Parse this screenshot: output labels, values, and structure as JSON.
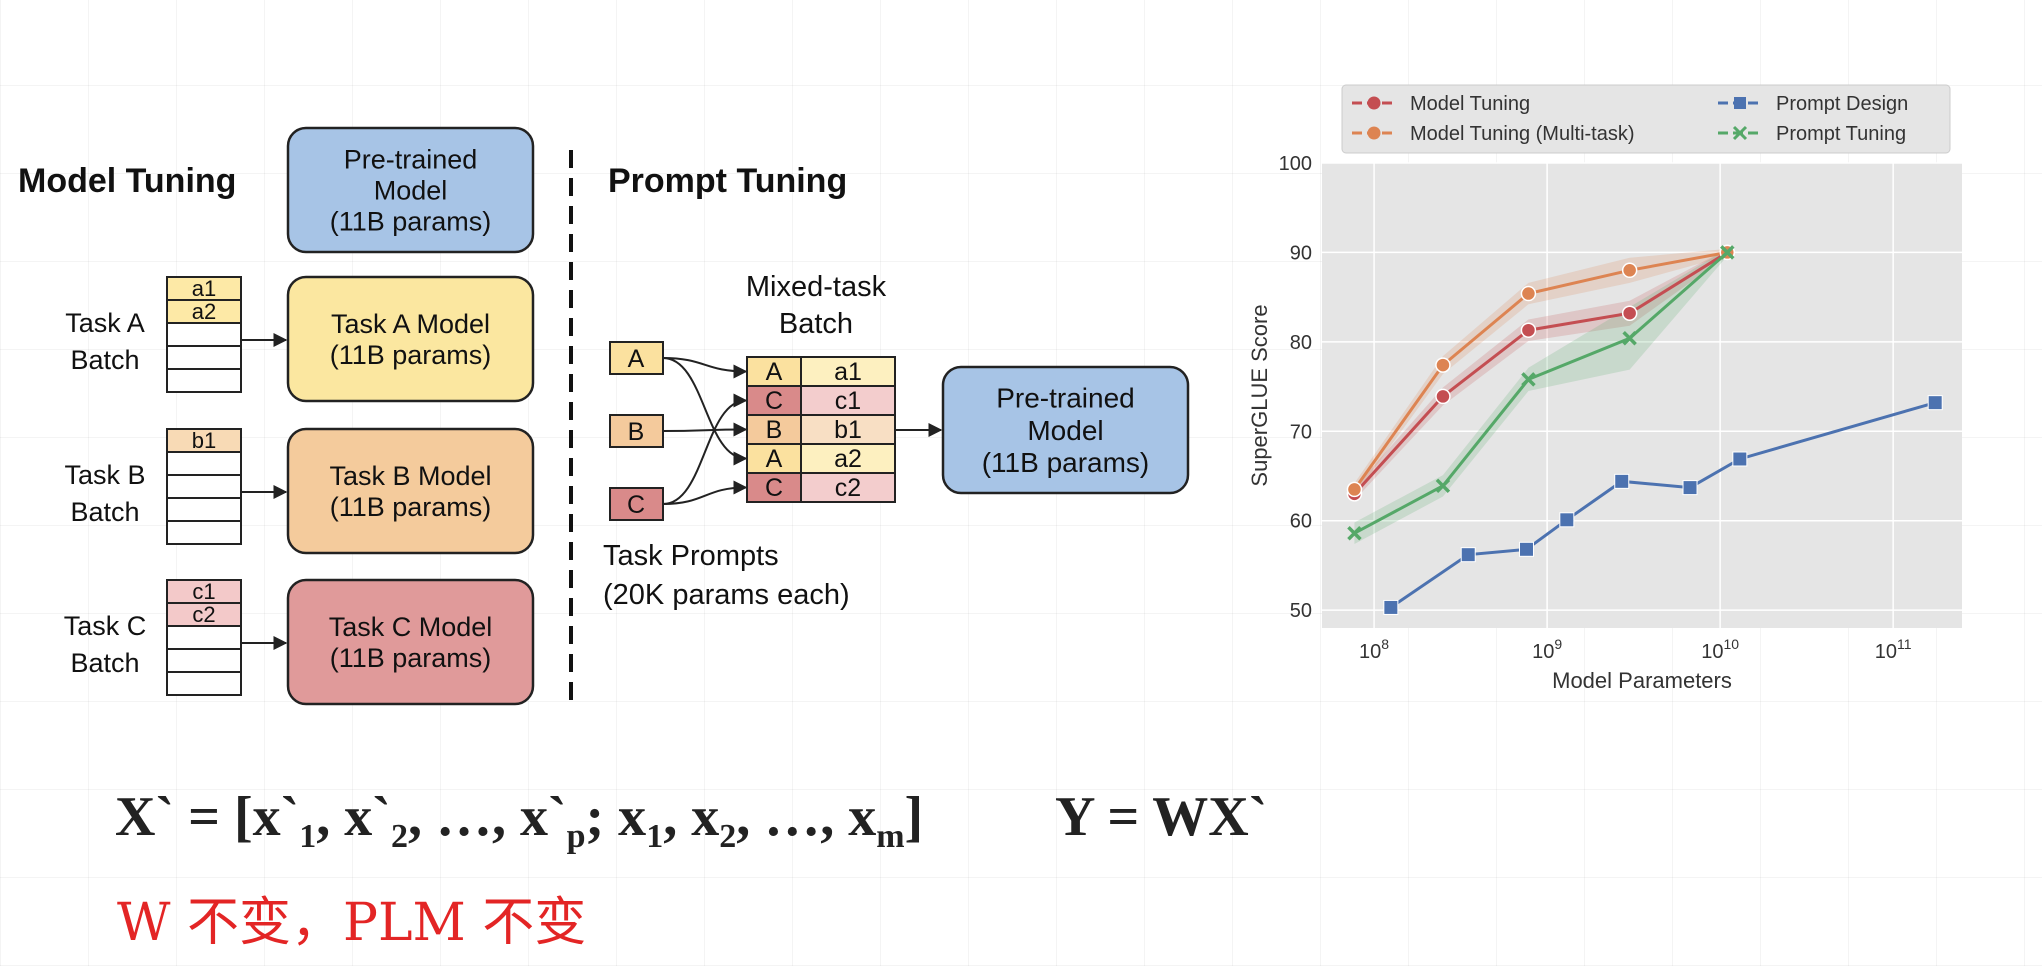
{
  "diagram": {
    "model_tuning": {
      "title": "Model Tuning",
      "pretrained": [
        "Pre-trained",
        "Model",
        "(11B params)"
      ],
      "tasks": [
        {
          "label": [
            "Task A",
            "Batch"
          ],
          "rows": [
            "a1",
            "a2",
            "",
            "",
            ""
          ],
          "model": [
            "Task A Model",
            "(11B params)"
          ],
          "fill": "#fde9a6",
          "model_fill": "#fbe7a0"
        },
        {
          "label": [
            "Task B",
            "Batch"
          ],
          "rows": [
            "b1",
            "",
            "",
            "",
            ""
          ],
          "model": [
            "Task B Model",
            "(11B params)"
          ],
          "fill": "#f8dab5",
          "model_fill": "#f4cb9c"
        },
        {
          "label": [
            "Task C",
            "Batch"
          ],
          "rows": [
            "c1",
            "c2",
            "",
            "",
            ""
          ],
          "model": [
            "Task C Model",
            "(11B params)"
          ],
          "fill": "#f3c9c9",
          "model_fill": "#e09a9a"
        }
      ]
    },
    "prompt_tuning": {
      "title": "Prompt Tuning",
      "mixed_title": [
        "Mixed-task",
        "Batch"
      ],
      "prompts": [
        "A",
        "B",
        "C"
      ],
      "prompt_fills": [
        "#fbe19f",
        "#f4ca9c",
        "#d98a8a"
      ],
      "batch": [
        {
          "prompt": "A",
          "data": "a1"
        },
        {
          "prompt": "C",
          "data": "c1"
        },
        {
          "prompt": "B",
          "data": "b1"
        },
        {
          "prompt": "A",
          "data": "a2"
        },
        {
          "prompt": "C",
          "data": "c2"
        }
      ],
      "task_prompts": [
        "Task Prompts",
        "(20K params each)"
      ],
      "pretrained": [
        "Pre-trained",
        "Model",
        "(11B params)"
      ]
    },
    "colors": {
      "blue_model": "#a7c4e6",
      "stroke": "#222222"
    }
  },
  "chart_data": {
    "type": "line",
    "xlabel": "Model Parameters",
    "ylabel": "SuperGLUE Score",
    "xscale": "log",
    "xlim": [
      50000000,
      250000000000
    ],
    "ylim": [
      48,
      100
    ],
    "xticks": [
      {
        "base": "10",
        "exp": "8",
        "value": 100000000
      },
      {
        "base": "10",
        "exp": "9",
        "value": 1000000000
      },
      {
        "base": "10",
        "exp": "10",
        "value": 10000000000
      },
      {
        "base": "10",
        "exp": "11",
        "value": 100000000000
      }
    ],
    "yticks": [
      50,
      60,
      70,
      80,
      90,
      100
    ],
    "grid": true,
    "legend_position": "top",
    "series": [
      {
        "name": "Model Tuning",
        "color": "#c44e52",
        "marker": "circle",
        "x": [
          77000000,
          250000000,
          780000000,
          3000000000,
          11000000000
        ],
        "y": [
          63.0,
          73.9,
          81.3,
          83.2,
          90.0
        ]
      },
      {
        "name": "Model Tuning (Multi-task)",
        "color": "#dd8452",
        "marker": "circle",
        "x": [
          77000000,
          250000000,
          780000000,
          3000000000,
          11000000000
        ],
        "y": [
          63.5,
          77.4,
          85.4,
          88.0,
          90.0
        ]
      },
      {
        "name": "Prompt Design",
        "color": "#4c72b0",
        "marker": "square",
        "x": [
          125000000,
          350000000,
          760000000,
          1300000000,
          2700000000,
          6700000000,
          13000000000,
          175000000000
        ],
        "y": [
          50.3,
          56.2,
          56.8,
          60.1,
          64.4,
          63.7,
          66.9,
          73.2
        ]
      },
      {
        "name": "Prompt Tuning",
        "color": "#55a868",
        "marker": "x",
        "x": [
          77000000,
          250000000,
          780000000,
          3000000000,
          11000000000
        ],
        "y": [
          58.6,
          63.9,
          75.8,
          80.4,
          90.0
        ]
      }
    ]
  },
  "formulas": {
    "eq1_parts": [
      "X` = [x`",
      "1",
      ", x`",
      "2",
      ", …, x`",
      "p",
      "; x",
      "1",
      ", x",
      "2",
      ", …, x",
      "m",
      "]"
    ],
    "eq2": "Y = WX`",
    "note": "W 不变，PLM 不变"
  }
}
